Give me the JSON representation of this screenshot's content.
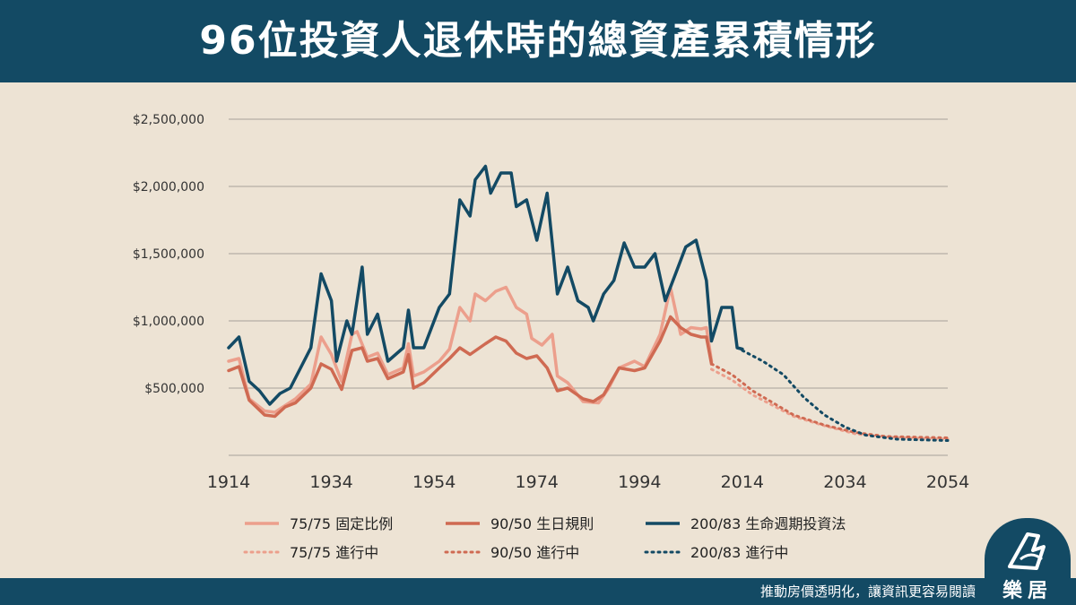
{
  "title": "96位投資人退休時的總資產累積情形",
  "footer": {
    "tagline": "推動房價透明化，讓資訊更容易閱讀",
    "brand": "樂居"
  },
  "colors": {
    "header_bg": "#134a64",
    "bg": "#ede3d4",
    "s75": "#ec9f8c",
    "s90": "#cf6a52",
    "s200": "#134a64"
  },
  "chart_data": {
    "type": "line",
    "x_ticks": [
      1914,
      1934,
      1954,
      1974,
      1994,
      2014,
      2034,
      2054
    ],
    "xlim": [
      1914,
      2054
    ],
    "y_ticks": [
      "$500,000",
      "$1,000,000",
      "$1,500,000",
      "$2,000,000",
      "$2,500,000"
    ],
    "y_tick_values": [
      500000,
      1000000,
      1500000,
      2000000,
      2500000
    ],
    "ylim": [
      0,
      2500000
    ],
    "grid": true,
    "legend_position": "bottom",
    "series": [
      {
        "name": "75/75 固定比例",
        "style": "solid",
        "color": "#ec9f8c",
        "points": [
          [
            1914,
            700000
          ],
          [
            1916,
            720000
          ],
          [
            1918,
            420000
          ],
          [
            1921,
            330000
          ],
          [
            1923,
            320000
          ],
          [
            1925,
            370000
          ],
          [
            1927,
            420000
          ],
          [
            1930,
            530000
          ],
          [
            1932,
            880000
          ],
          [
            1934,
            750000
          ],
          [
            1936,
            550000
          ],
          [
            1938,
            900000
          ],
          [
            1939,
            920000
          ],
          [
            1941,
            730000
          ],
          [
            1943,
            760000
          ],
          [
            1945,
            600000
          ],
          [
            1948,
            650000
          ],
          [
            1949,
            830000
          ],
          [
            1950,
            590000
          ],
          [
            1952,
            620000
          ],
          [
            1955,
            700000
          ],
          [
            1957,
            790000
          ],
          [
            1959,
            1100000
          ],
          [
            1961,
            1000000
          ],
          [
            1962,
            1200000
          ],
          [
            1964,
            1150000
          ],
          [
            1966,
            1220000
          ],
          [
            1968,
            1250000
          ],
          [
            1970,
            1100000
          ],
          [
            1972,
            1050000
          ],
          [
            1973,
            870000
          ],
          [
            1975,
            820000
          ],
          [
            1977,
            900000
          ],
          [
            1978,
            590000
          ],
          [
            1980,
            540000
          ],
          [
            1983,
            400000
          ],
          [
            1986,
            390000
          ],
          [
            1988,
            500000
          ],
          [
            1990,
            650000
          ],
          [
            1993,
            700000
          ],
          [
            1995,
            660000
          ],
          [
            1998,
            900000
          ],
          [
            2000,
            1250000
          ],
          [
            2002,
            900000
          ],
          [
            2004,
            950000
          ],
          [
            2006,
            940000
          ],
          [
            2007,
            950000
          ],
          [
            2008,
            700000
          ]
        ]
      },
      {
        "name": "90/50 生日規則",
        "style": "solid",
        "color": "#cf6a52",
        "points": [
          [
            1914,
            630000
          ],
          [
            1916,
            660000
          ],
          [
            1918,
            410000
          ],
          [
            1921,
            300000
          ],
          [
            1923,
            290000
          ],
          [
            1925,
            360000
          ],
          [
            1927,
            390000
          ],
          [
            1930,
            500000
          ],
          [
            1932,
            680000
          ],
          [
            1934,
            640000
          ],
          [
            1936,
            490000
          ],
          [
            1938,
            780000
          ],
          [
            1940,
            800000
          ],
          [
            1941,
            700000
          ],
          [
            1943,
            720000
          ],
          [
            1945,
            570000
          ],
          [
            1948,
            620000
          ],
          [
            1949,
            750000
          ],
          [
            1950,
            500000
          ],
          [
            1952,
            540000
          ],
          [
            1955,
            650000
          ],
          [
            1957,
            720000
          ],
          [
            1959,
            800000
          ],
          [
            1961,
            750000
          ],
          [
            1964,
            830000
          ],
          [
            1966,
            880000
          ],
          [
            1968,
            850000
          ],
          [
            1970,
            760000
          ],
          [
            1972,
            720000
          ],
          [
            1974,
            740000
          ],
          [
            1976,
            650000
          ],
          [
            1978,
            480000
          ],
          [
            1980,
            500000
          ],
          [
            1983,
            420000
          ],
          [
            1985,
            400000
          ],
          [
            1987,
            450000
          ],
          [
            1990,
            650000
          ],
          [
            1993,
            630000
          ],
          [
            1995,
            650000
          ],
          [
            1998,
            850000
          ],
          [
            2000,
            1030000
          ],
          [
            2002,
            950000
          ],
          [
            2004,
            900000
          ],
          [
            2006,
            880000
          ],
          [
            2007,
            880000
          ],
          [
            2008,
            680000
          ]
        ]
      },
      {
        "name": "200/83 生命週期投資法",
        "style": "solid",
        "color": "#134a64",
        "points": [
          [
            1914,
            800000
          ],
          [
            1916,
            880000
          ],
          [
            1918,
            550000
          ],
          [
            1920,
            480000
          ],
          [
            1922,
            380000
          ],
          [
            1924,
            460000
          ],
          [
            1926,
            500000
          ],
          [
            1928,
            650000
          ],
          [
            1930,
            800000
          ],
          [
            1932,
            1350000
          ],
          [
            1934,
            1150000
          ],
          [
            1935,
            700000
          ],
          [
            1937,
            1000000
          ],
          [
            1938,
            900000
          ],
          [
            1940,
            1400000
          ],
          [
            1941,
            900000
          ],
          [
            1943,
            1050000
          ],
          [
            1945,
            700000
          ],
          [
            1948,
            800000
          ],
          [
            1949,
            1080000
          ],
          [
            1950,
            800000
          ],
          [
            1952,
            800000
          ],
          [
            1955,
            1100000
          ],
          [
            1957,
            1200000
          ],
          [
            1959,
            1900000
          ],
          [
            1961,
            1780000
          ],
          [
            1962,
            2050000
          ],
          [
            1964,
            2150000
          ],
          [
            1965,
            1950000
          ],
          [
            1967,
            2100000
          ],
          [
            1969,
            2100000
          ],
          [
            1970,
            1850000
          ],
          [
            1972,
            1900000
          ],
          [
            1974,
            1600000
          ],
          [
            1976,
            1950000
          ],
          [
            1977,
            1580000
          ],
          [
            1978,
            1200000
          ],
          [
            1980,
            1400000
          ],
          [
            1982,
            1150000
          ],
          [
            1984,
            1100000
          ],
          [
            1985,
            1000000
          ],
          [
            1987,
            1200000
          ],
          [
            1989,
            1300000
          ],
          [
            1991,
            1580000
          ],
          [
            1993,
            1400000
          ],
          [
            1995,
            1400000
          ],
          [
            1997,
            1500000
          ],
          [
            1999,
            1150000
          ],
          [
            2001,
            1350000
          ],
          [
            2003,
            1550000
          ],
          [
            2005,
            1600000
          ],
          [
            2007,
            1300000
          ],
          [
            2008,
            850000
          ],
          [
            2010,
            1100000
          ],
          [
            2012,
            1100000
          ],
          [
            2013,
            800000
          ],
          [
            2014,
            790000
          ]
        ]
      },
      {
        "name": "75/75 進行中",
        "style": "dotted",
        "color": "#ec9f8c",
        "points": [
          [
            2008,
            640000
          ],
          [
            2012,
            560000
          ],
          [
            2016,
            450000
          ],
          [
            2020,
            370000
          ],
          [
            2024,
            290000
          ],
          [
            2030,
            220000
          ],
          [
            2036,
            160000
          ],
          [
            2042,
            135000
          ],
          [
            2054,
            120000
          ]
        ]
      },
      {
        "name": "90/50 進行中",
        "style": "dotted",
        "color": "#cf6a52",
        "points": [
          [
            2008,
            680000
          ],
          [
            2012,
            600000
          ],
          [
            2016,
            480000
          ],
          [
            2020,
            390000
          ],
          [
            2024,
            300000
          ],
          [
            2030,
            225000
          ],
          [
            2036,
            170000
          ],
          [
            2042,
            140000
          ],
          [
            2054,
            130000
          ]
        ]
      },
      {
        "name": "200/83 進行中",
        "style": "dotted",
        "color": "#134a64",
        "points": [
          [
            2014,
            780000
          ],
          [
            2018,
            700000
          ],
          [
            2022,
            600000
          ],
          [
            2026,
            430000
          ],
          [
            2030,
            300000
          ],
          [
            2034,
            210000
          ],
          [
            2038,
            150000
          ],
          [
            2044,
            120000
          ],
          [
            2054,
            110000
          ]
        ]
      }
    ]
  }
}
